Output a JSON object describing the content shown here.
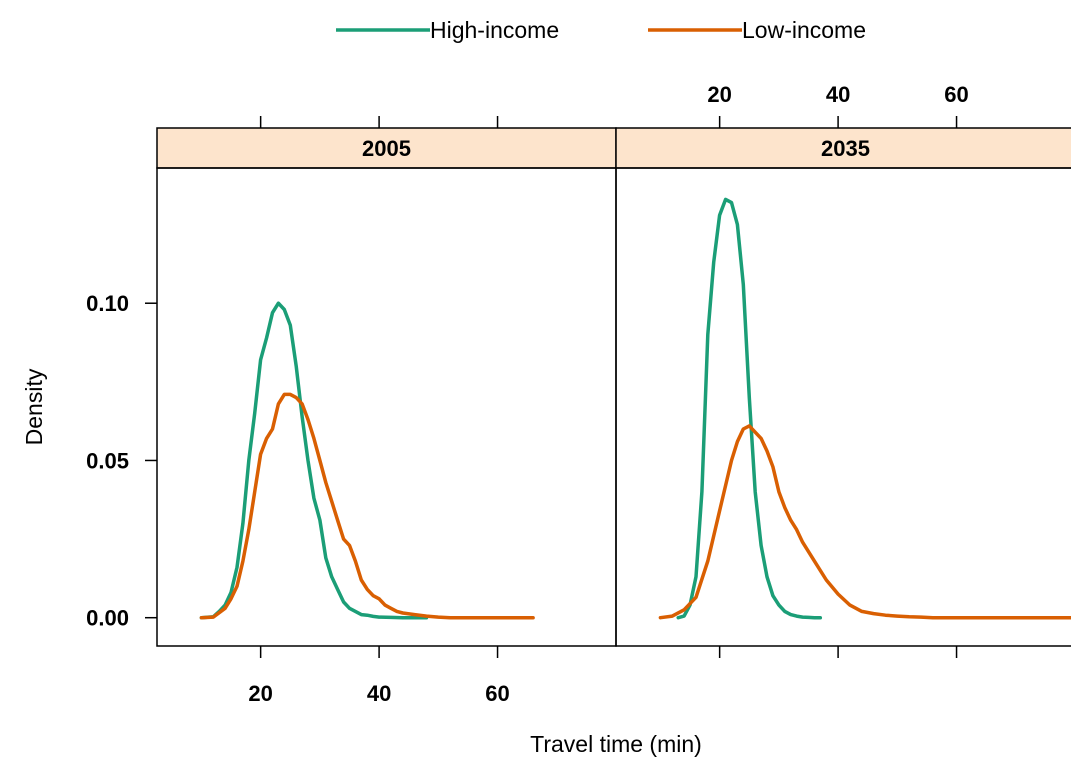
{
  "chart_data": {
    "type": "line",
    "xlabel": "Travel time (min)",
    "ylabel": "Density",
    "x_ticks": [
      20,
      40,
      60
    ],
    "y_ticks": [
      "0.00",
      "0.05",
      "0.10"
    ],
    "y_tick_values": [
      0,
      0.05,
      0.1
    ],
    "xlim": [
      2.5,
      80
    ],
    "ylim": [
      -0.009,
      0.143
    ],
    "legend_position": "top",
    "grid": false,
    "strip_color": "#fde4cc",
    "panels": [
      {
        "name": "2005",
        "series": [
          {
            "name": "High-income",
            "color": "#1b9e77",
            "x": [
              10,
              12,
              13,
              14,
              15,
              16,
              17,
              18,
              19,
              20,
              21,
              22,
              23,
              24,
              25,
              26,
              27,
              28,
              29,
              30,
              31,
              32,
              33,
              34,
              35,
              36,
              37,
              38,
              39,
              40,
              42,
              44,
              46,
              48
            ],
            "y": [
              0,
              0.0003,
              0.002,
              0.004,
              0.008,
              0.016,
              0.03,
              0.05,
              0.065,
              0.082,
              0.089,
              0.097,
              0.1,
              0.098,
              0.093,
              0.08,
              0.064,
              0.05,
              0.038,
              0.031,
              0.019,
              0.013,
              0.009,
              0.005,
              0.003,
              0.002,
              0.001,
              0.0008,
              0.0004,
              0.0002,
              0.0001,
              0,
              0,
              0
            ]
          },
          {
            "name": "Low-income",
            "color": "#d95f02",
            "x": [
              10,
              12,
              14,
              15,
              16,
              17,
              18,
              19,
              20,
              21,
              22,
              23,
              24,
              25,
              26,
              27,
              28,
              29,
              30,
              31,
              32,
              33,
              34,
              35,
              36,
              37,
              38,
              39,
              40,
              41,
              42,
              43,
              44,
              46,
              48,
              50,
              52,
              56,
              60,
              66
            ],
            "y": [
              0,
              0.0002,
              0.003,
              0.006,
              0.01,
              0.018,
              0.028,
              0.04,
              0.052,
              0.057,
              0.06,
              0.068,
              0.071,
              0.071,
              0.07,
              0.068,
              0.063,
              0.057,
              0.05,
              0.043,
              0.037,
              0.031,
              0.025,
              0.023,
              0.018,
              0.012,
              0.009,
              0.007,
              0.006,
              0.004,
              0.003,
              0.002,
              0.0015,
              0.001,
              0.0005,
              0.0002,
              0,
              0,
              0,
              0
            ]
          }
        ]
      },
      {
        "name": "2035",
        "series": [
          {
            "name": "High-income",
            "color": "#1b9e77",
            "x": [
              13,
              14,
              15,
              16,
              17,
              18,
              19,
              20,
              21,
              22,
              23,
              24,
              25,
              26,
              27,
              28,
              29,
              30,
              31,
              32,
              33,
              34,
              35,
              36,
              37
            ],
            "y": [
              0,
              0.0005,
              0.004,
              0.013,
              0.04,
              0.09,
              0.113,
              0.128,
              0.133,
              0.132,
              0.125,
              0.106,
              0.07,
              0.04,
              0.023,
              0.013,
              0.007,
              0.004,
              0.002,
              0.001,
              0.0005,
              0.0002,
              0.0001,
              0,
              0
            ]
          },
          {
            "name": "Low-income",
            "color": "#d95f02",
            "x": [
              10,
              12,
              14,
              16,
              18,
              20,
              22,
              23,
              24,
              25,
              26,
              27,
              28,
              29,
              30,
              31,
              32,
              33,
              34,
              36,
              38,
              40,
              42,
              44,
              46,
              48,
              50,
              52,
              54,
              56,
              60,
              66,
              72,
              80
            ],
            "y": [
              0,
              0.0005,
              0.0025,
              0.0065,
              0.018,
              0.034,
              0.05,
              0.056,
              0.06,
              0.061,
              0.059,
              0.057,
              0.053,
              0.048,
              0.04,
              0.035,
              0.031,
              0.028,
              0.024,
              0.018,
              0.012,
              0.0075,
              0.004,
              0.002,
              0.0013,
              0.0008,
              0.0005,
              0.0003,
              0.0002,
              0,
              0,
              0,
              0,
              0
            ]
          }
        ]
      }
    ]
  }
}
